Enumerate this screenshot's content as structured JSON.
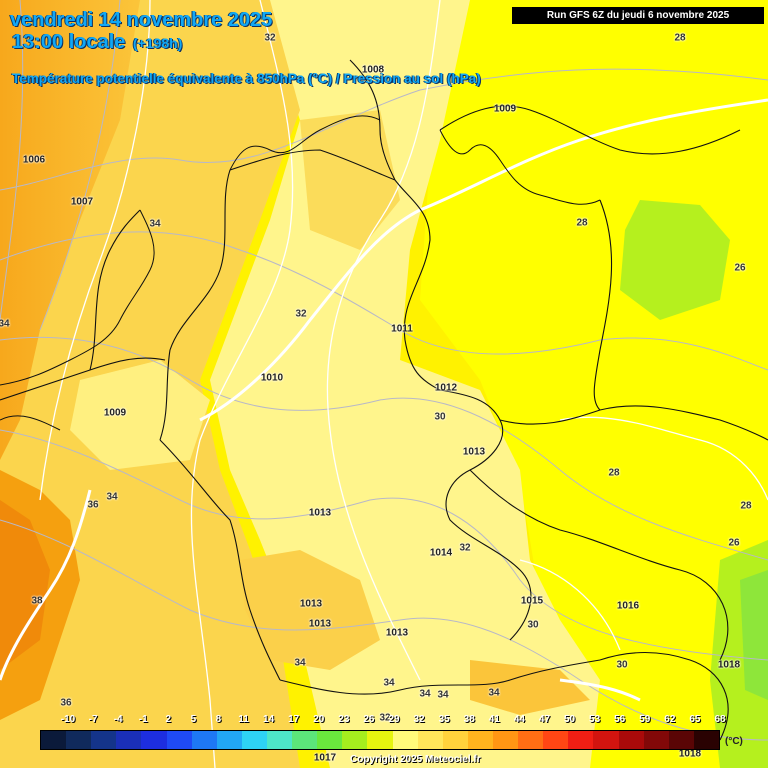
{
  "header": {
    "date": "vendredi 14 novembre 2025",
    "time": "13:00 locale",
    "lead": "(+198h)",
    "parameter": "Température potentielle équivalente à 850hPa (°C) / Pression au sol (hPa)",
    "run": "Run GFS 6Z du jeudi 6 novembre 2025"
  },
  "pressure_labels": [
    "1006",
    "1007",
    "1008",
    "1009",
    "1011",
    "1010",
    "1009",
    "1012",
    "1013",
    "1013",
    "1014",
    "1013",
    "1013",
    "1013",
    "1015",
    "1016",
    "1018",
    "1017",
    "1018"
  ],
  "isotherm_labels": [
    "32",
    "28",
    "34",
    "34",
    "32",
    "28",
    "26",
    "30",
    "28",
    "28",
    "26",
    "36",
    "34",
    "38",
    "32",
    "30",
    "30",
    "34",
    "34",
    "34",
    "34",
    "36",
    "34",
    "32"
  ],
  "colorbar": {
    "ticks": [
      "-10",
      "-7",
      "-4",
      "-1",
      "2",
      "5",
      "8",
      "11",
      "14",
      "17",
      "20",
      "23",
      "26",
      "29",
      "32",
      "35",
      "38",
      "41",
      "44",
      "47",
      "50",
      "53",
      "56",
      "59",
      "62",
      "65",
      "68"
    ],
    "colors": [
      "#0b1a3a",
      "#102a5c",
      "#14348a",
      "#1a2fb8",
      "#1d2ee0",
      "#1f4af5",
      "#1e78f5",
      "#22a6f5",
      "#2ed2f5",
      "#4de6c8",
      "#5ce67a",
      "#6ae83d",
      "#a5ee1e",
      "#e6f50f",
      "#fffb7a",
      "#ffe65a",
      "#ffd23c",
      "#ffb41e",
      "#ff9614",
      "#ff6e14",
      "#ff4614",
      "#f01e14",
      "#d2140f",
      "#aa0a0a",
      "#820808",
      "#5a0505",
      "#2a0202"
    ],
    "unit": "(°C)"
  },
  "copyright": "Copyright 2025 Meteociel.fr",
  "colors": {
    "header_text": "#11a8f5",
    "warm_orange": "#f59a0f",
    "light_orange": "#fbc53a",
    "pale_yellow": "#fff38a",
    "bright_yellow": "#ffff00",
    "green_yellow": "#b5f01e"
  },
  "icons": {
    "borders": "country-borders",
    "coastline": "coastlines",
    "isobars": "isobar-lines"
  }
}
